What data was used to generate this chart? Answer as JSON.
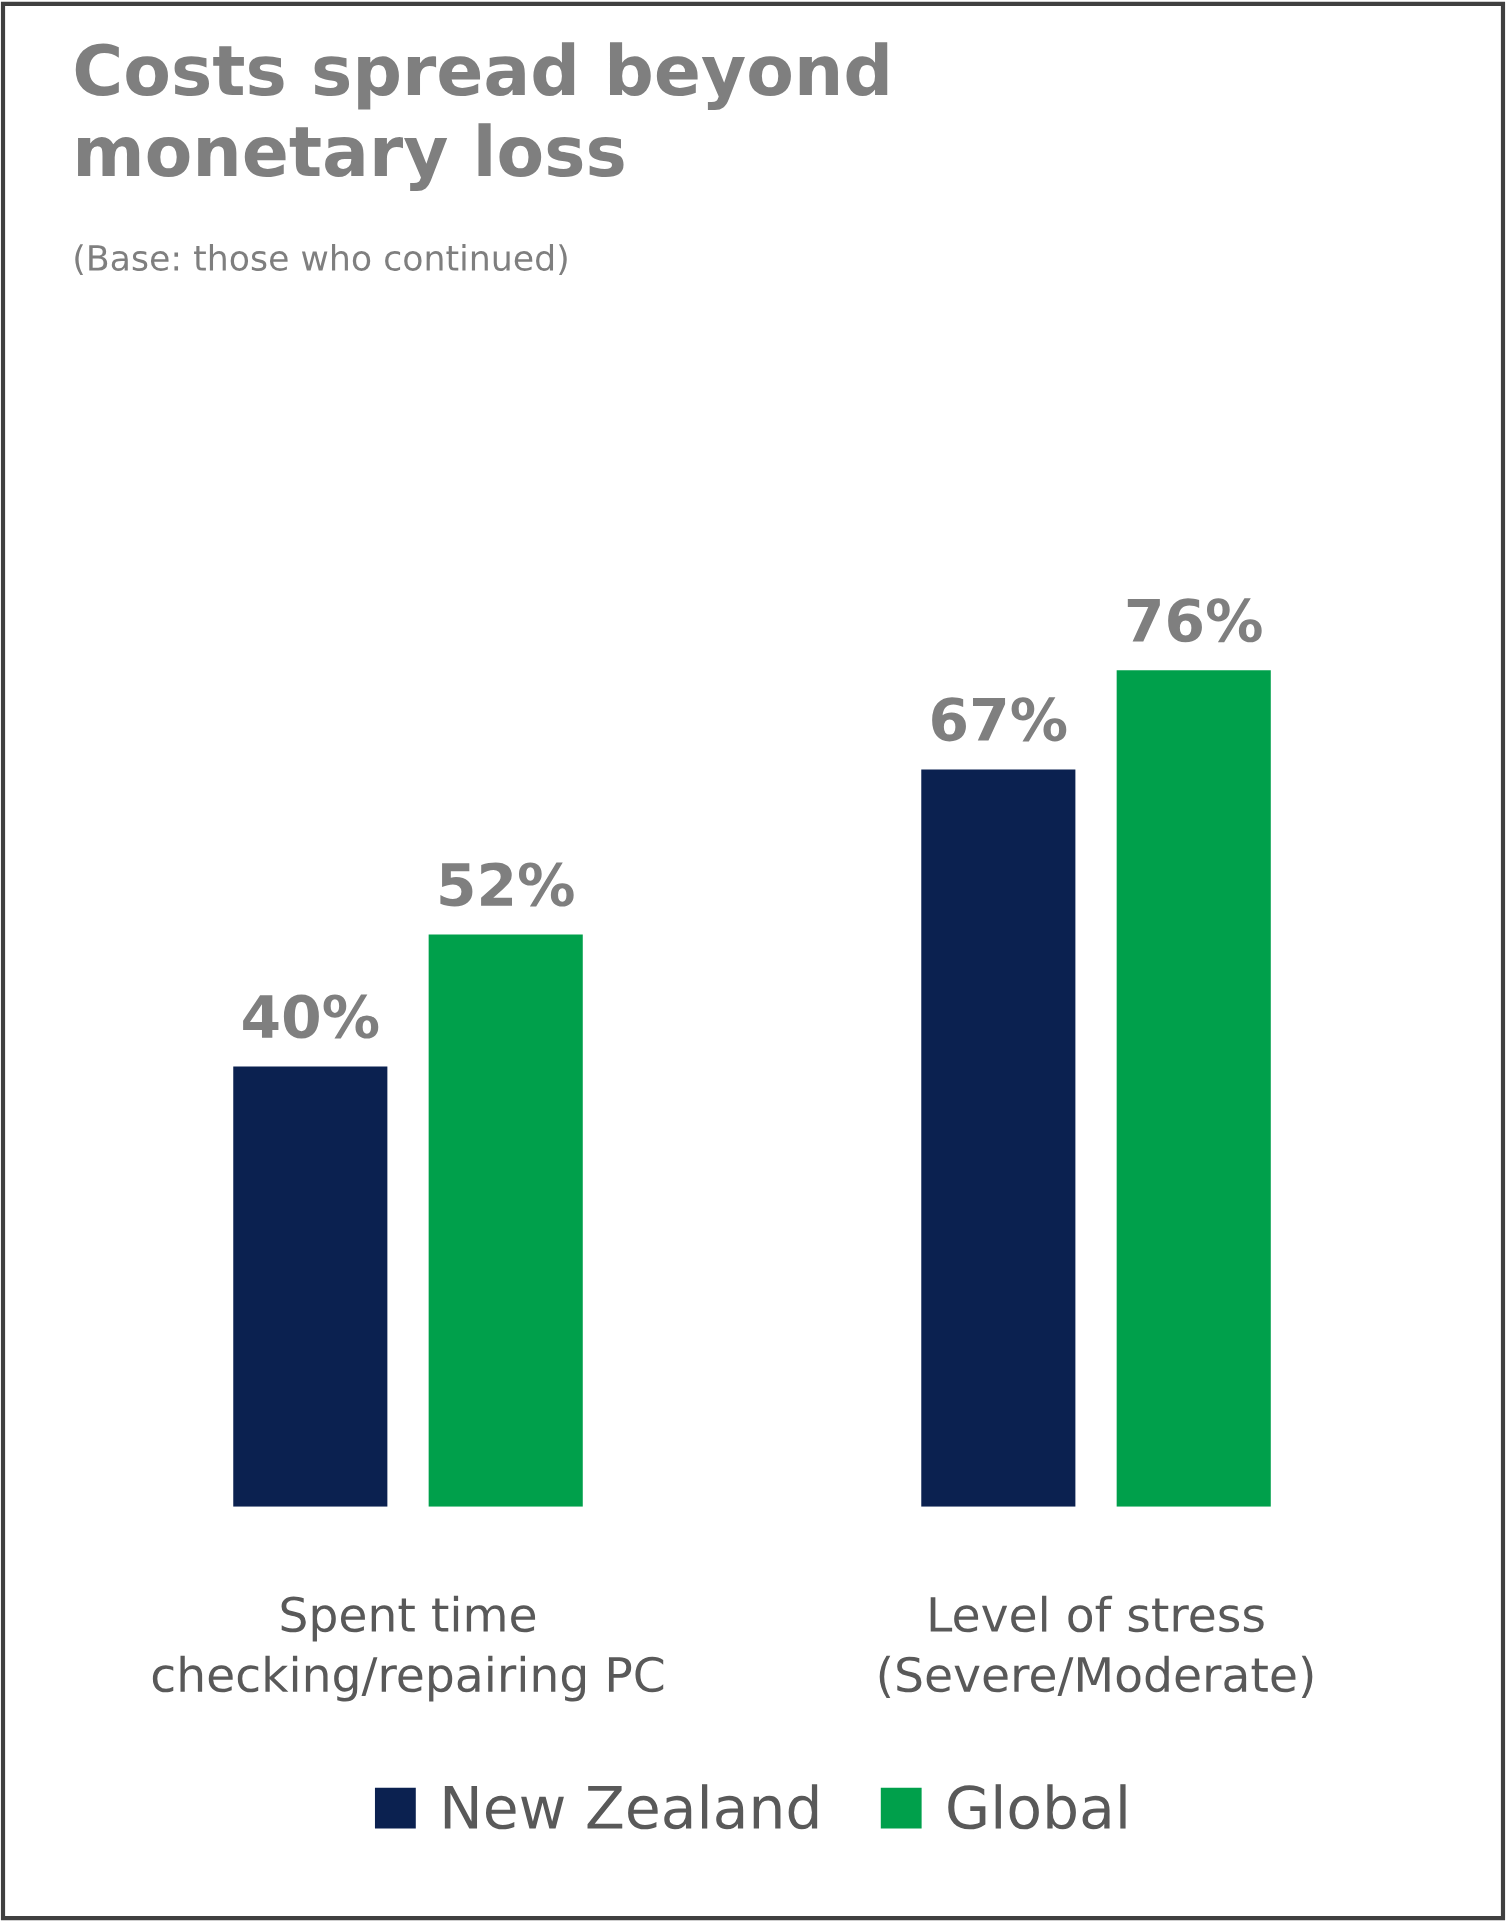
{
  "chart_data": {
    "type": "bar",
    "title": "Costs spread beyond monetary loss",
    "subtitle": "(Base: those who continued)",
    "categories": [
      "Spent time checking/repairing PC",
      "Level of stress (Severe/Moderate)"
    ],
    "series": [
      {
        "name": "New Zealand",
        "color": "#0b2150",
        "values": [
          40,
          67
        ],
        "value_labels": [
          "40%",
          "67%"
        ]
      },
      {
        "name": "Global",
        "color": "#00a04b",
        "values": [
          52,
          76
        ],
        "value_labels": [
          "52%",
          "76%"
        ]
      }
    ],
    "legend": "bottom",
    "grid": false,
    "tick_labels": "x"
  }
}
